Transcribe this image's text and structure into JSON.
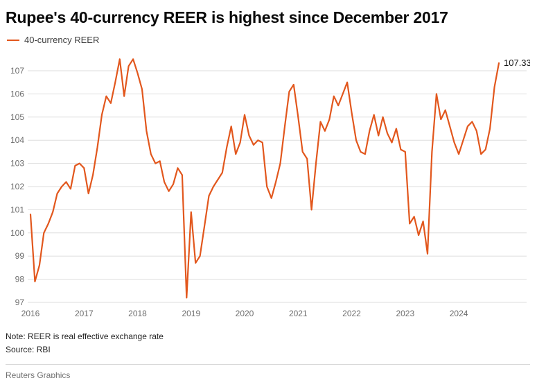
{
  "header": {
    "title": "Rupee's 40-currency REER is highest since December 2017"
  },
  "legend": {
    "label": "40-currency REER"
  },
  "colors": {
    "line": "#e2571d",
    "grid": "#dedede",
    "axis_text": "#6d6d6d",
    "title": "#0a0a0a"
  },
  "chart_data": {
    "type": "line",
    "title": "Rupee's 40-currency REER is highest since December 2017",
    "series_name": "40-currency REER",
    "frequency": "monthly",
    "xticks": [
      "2016",
      "2017",
      "2018",
      "2019",
      "2020",
      "2021",
      "2022",
      "2023",
      "2024"
    ],
    "yticks": [
      97,
      98,
      99,
      100,
      101,
      102,
      103,
      104,
      105,
      106,
      107
    ],
    "ylim": [
      97,
      107
    ],
    "grid": "horizontal",
    "legend_position": "top-left",
    "end_label": "107.33",
    "values_by_year": {
      "2016": [
        100.8,
        97.9,
        98.6,
        100.0,
        100.4,
        100.9,
        101.7,
        102.0,
        102.2,
        101.9,
        102.9,
        103.0
      ],
      "2017": [
        102.8,
        101.7,
        102.5,
        103.7,
        105.1,
        105.9,
        105.6,
        106.5,
        107.5,
        105.9,
        107.2,
        107.5
      ],
      "2018": [
        106.9,
        106.2,
        104.4,
        103.4,
        103.0,
        103.1,
        102.2,
        101.8,
        102.1,
        102.8,
        102.5,
        97.2
      ],
      "2019": [
        100.9,
        98.7,
        99.0,
        100.3,
        101.6,
        102.0,
        102.3,
        102.6,
        103.7,
        104.6,
        103.4,
        103.9
      ],
      "2020": [
        105.1,
        104.2,
        103.8,
        104.0,
        103.9,
        102.0,
        101.5,
        102.2,
        103.0,
        104.6,
        106.1,
        106.4
      ],
      "2021": [
        105.0,
        103.5,
        103.2,
        101.0,
        103.0,
        104.8,
        104.4,
        104.9,
        105.9,
        105.5,
        106.0,
        106.5
      ],
      "2022": [
        105.2,
        104.0,
        103.5,
        103.4,
        104.4,
        105.1,
        104.2,
        105.0,
        104.3,
        103.9,
        104.5,
        103.6
      ],
      "2023": [
        103.5,
        100.4,
        100.7,
        99.9,
        100.5,
        99.1,
        103.5,
        106.0,
        104.9,
        105.3,
        104.6,
        103.9
      ],
      "2024": [
        103.4,
        104.0,
        104.6,
        104.8,
        104.4,
        103.4,
        103.6,
        104.5,
        106.3,
        107.33
      ]
    }
  },
  "footer": {
    "note": "Note: REER is real effective exchange rate",
    "source": "Source: RBI",
    "credit": "Reuters Graphics"
  }
}
